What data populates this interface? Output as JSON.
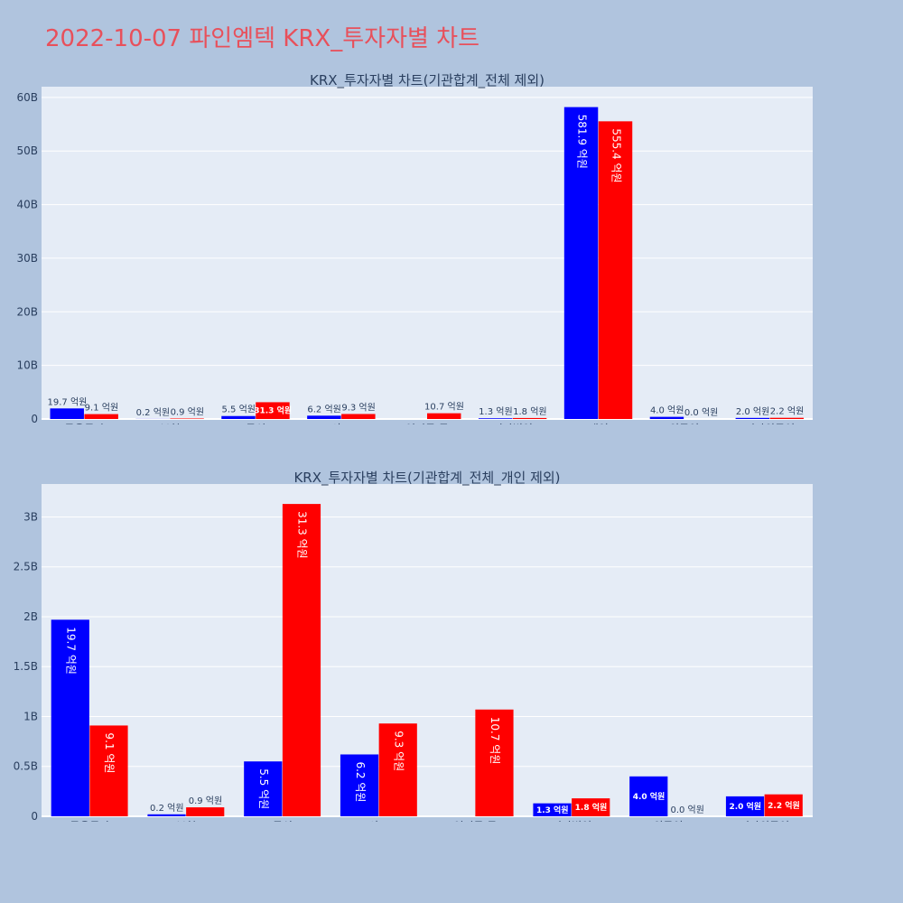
{
  "page": {
    "title": "2022-10-07 파인엠텍 KRX_투자자별 차트"
  },
  "colors": {
    "background": "#b0c4de",
    "plot_background": "#e5ecf6",
    "grid": "#ffffff",
    "title": "#e8505b",
    "text": "#2a3f5f",
    "series_blue": "#0000ff",
    "series_red": "#ff0000"
  },
  "chart_data": [
    {
      "type": "bar",
      "title": "KRX_투자자별 차트(기관합계_전체 제외)",
      "categories": [
        "금융투자",
        "보험",
        "투신",
        "사모",
        "연기금 등",
        "기타법인",
        "개인",
        "외국인",
        "기타외국인"
      ],
      "ylim": [
        0,
        62000000000
      ],
      "yticks": [
        0,
        10000000000,
        20000000000,
        30000000000,
        40000000000,
        50000000000,
        60000000000
      ],
      "ytick_labels": [
        "0",
        "10B",
        "20B",
        "30B",
        "40B",
        "50B",
        "60B"
      ],
      "grid": true,
      "series": [
        {
          "color": "#0000ff",
          "values": [
            1970000000,
            20000000,
            550000000,
            620000000,
            0,
            130000000,
            58190000000,
            400000000,
            200000000
          ],
          "labels": [
            "19.7 억원",
            "0.2 억원",
            "5.5 억원",
            "6.2 억원",
            "",
            "1.3 억원",
            "581.9 억원",
            "4.0 억원",
            "2.0 억원"
          ]
        },
        {
          "color": "#ff0000",
          "values": [
            910000000,
            90000000,
            3130000000,
            930000000,
            1070000000,
            180000000,
            55540000000,
            0,
            220000000
          ],
          "labels": [
            "9.1 억원",
            "0.9 억원",
            "31.3 억원",
            "9.3 억원",
            "10.7 억원",
            "1.8 억원",
            "555.4 억원",
            "0.0 억원",
            "2.2 억원"
          ]
        }
      ]
    },
    {
      "type": "bar",
      "title": "KRX_투자자별 차트(기관합계_전체_개인 제외)",
      "categories": [
        "금융투자",
        "보험",
        "투신",
        "사모",
        "연기금 등",
        "기타법인",
        "외국인",
        "기타외국인"
      ],
      "ylim": [
        0,
        3330000000
      ],
      "yticks": [
        0,
        500000000,
        1000000000,
        1500000000,
        2000000000,
        2500000000,
        3000000000
      ],
      "ytick_labels": [
        "0",
        "0.5B",
        "1B",
        "1.5B",
        "2B",
        "2.5B",
        "3B"
      ],
      "grid": true,
      "series": [
        {
          "color": "#0000ff",
          "values": [
            1970000000,
            20000000,
            550000000,
            620000000,
            0,
            130000000,
            400000000,
            200000000
          ],
          "labels": [
            "19.7 억원",
            "0.2 억원",
            "5.5 억원",
            "6.2 억원",
            "",
            "1.3 억원",
            "4.0 억원",
            "2.0 억원"
          ]
        },
        {
          "color": "#ff0000",
          "values": [
            910000000,
            90000000,
            3130000000,
            930000000,
            1070000000,
            180000000,
            0,
            220000000
          ],
          "labels": [
            "9.1 억원",
            "0.9 억원",
            "31.3 억원",
            "9.3 억원",
            "10.7 억원",
            "1.8 억원",
            "0.0 억원",
            "2.2 억원"
          ]
        }
      ]
    }
  ]
}
